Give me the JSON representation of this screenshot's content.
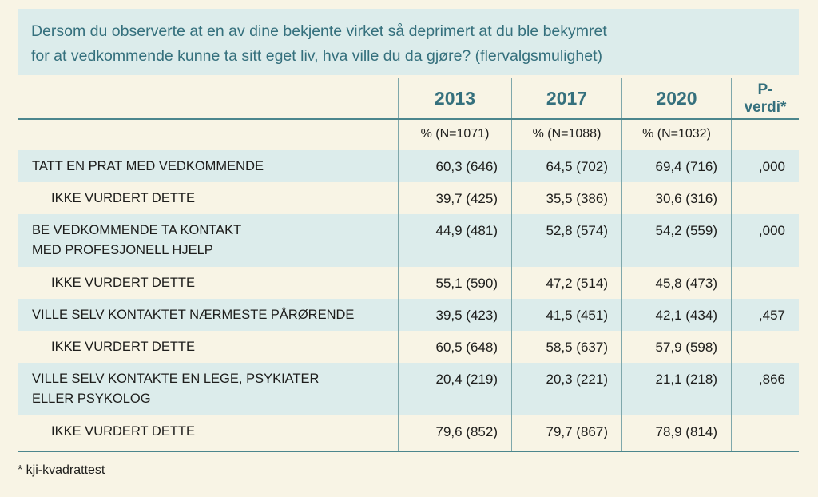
{
  "page": {
    "background_color": "#f8f4e5",
    "teal_band_color": "#dceceb",
    "teal_text_color": "#35707d",
    "rule_color": "#4c868d"
  },
  "question_box": {
    "text": "Dersom du observerte at en av dine bekjente virket så deprimert at du ble bekymret\nfor at vedkommende kunne ta sitt eget liv, hva ville du da gjøre? (flervalgsmulighet)"
  },
  "table": {
    "year_columns": [
      "2013",
      "2017",
      "2020"
    ],
    "pvalue_header": "P-\nverdi*",
    "subheaders": [
      "% (N=1071)",
      "% (N=1088)",
      "% (N=1032)"
    ],
    "rows": [
      {
        "label": "TATT EN PRAT MED VEDKOMMENDE",
        "indent": false,
        "highlight": true,
        "values": [
          "60,3 (646)",
          "64,5 (702)",
          "69,4 (716)"
        ],
        "p": ",000"
      },
      {
        "label": "IKKE VURDERT DETTE",
        "indent": true,
        "highlight": false,
        "values": [
          "39,7 (425)",
          "35,5 (386)",
          "30,6 (316)"
        ],
        "p": ""
      },
      {
        "label": "BE VEDKOMMENDE TA KONTAKT\nMED PROFESJONELL HJELP",
        "indent": false,
        "highlight": true,
        "values": [
          "44,9 (481)",
          "52,8 (574)",
          "54,2 (559)"
        ],
        "p": ",000"
      },
      {
        "label": "IKKE VURDERT DETTE",
        "indent": true,
        "highlight": false,
        "values": [
          "55,1 (590)",
          "47,2 (514)",
          "45,8 (473)"
        ],
        "p": ""
      },
      {
        "label": "VILLE SELV KONTAKTET NÆRMESTE PÅRØRENDE",
        "indent": false,
        "highlight": true,
        "values": [
          "39,5 (423)",
          "41,5 (451)",
          "42,1 (434)"
        ],
        "p": ",457"
      },
      {
        "label": "IKKE VURDERT DETTE",
        "indent": true,
        "highlight": false,
        "values": [
          "60,5 (648)",
          "58,5 (637)",
          "57,9 (598)"
        ],
        "p": ""
      },
      {
        "label": "VILLE SELV KONTAKTE EN LEGE, PSYKIATER\nELLER PSYKOLOG",
        "indent": false,
        "highlight": true,
        "values": [
          "20,4 (219)",
          "20,3 (221)",
          "21,1 (218)"
        ],
        "p": ",866"
      },
      {
        "label": "IKKE VURDERT DETTE",
        "indent": true,
        "highlight": false,
        "values": [
          "79,6 (852)",
          "79,7 (867)",
          "78,9 (814)"
        ],
        "p": ""
      }
    ]
  },
  "footnote": "* kji-kvadrattest"
}
